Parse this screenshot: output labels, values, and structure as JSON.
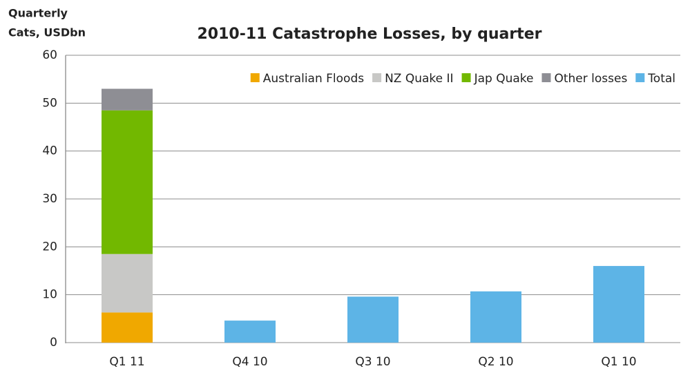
{
  "chart_data": {
    "type": "stacked_bar",
    "title": "2010-11 Catastrophe Losses, by quarter",
    "y_label": [
      "Quarterly",
      "Cats, USDbn"
    ],
    "categories": [
      "Q1 11",
      "Q4 10",
      "Q3 10",
      "Q2 10",
      "Q1 10"
    ],
    "series": [
      {
        "name": "Australian Floods",
        "color": "#f0a800",
        "values": [
          6.3,
          null,
          null,
          null,
          null
        ]
      },
      {
        "name": "NZ Quake II",
        "color": "#c8c8c6",
        "values": [
          12.2,
          null,
          null,
          null,
          null
        ]
      },
      {
        "name": "Jap Quake",
        "color": "#72b800",
        "values": [
          30,
          null,
          null,
          null,
          null
        ]
      },
      {
        "name": "Other losses",
        "color": "#8e8e94",
        "values": [
          4.5,
          null,
          null,
          null,
          null
        ]
      },
      {
        "name": "Total",
        "color": "#5db4e6",
        "values": [
          null,
          4.6,
          9.6,
          10.7,
          16
        ]
      }
    ],
    "ylim": [
      0,
      60
    ],
    "yticks": [
      0,
      10,
      20,
      30,
      40,
      50,
      60
    ],
    "grid": true,
    "legend": "top-right"
  }
}
